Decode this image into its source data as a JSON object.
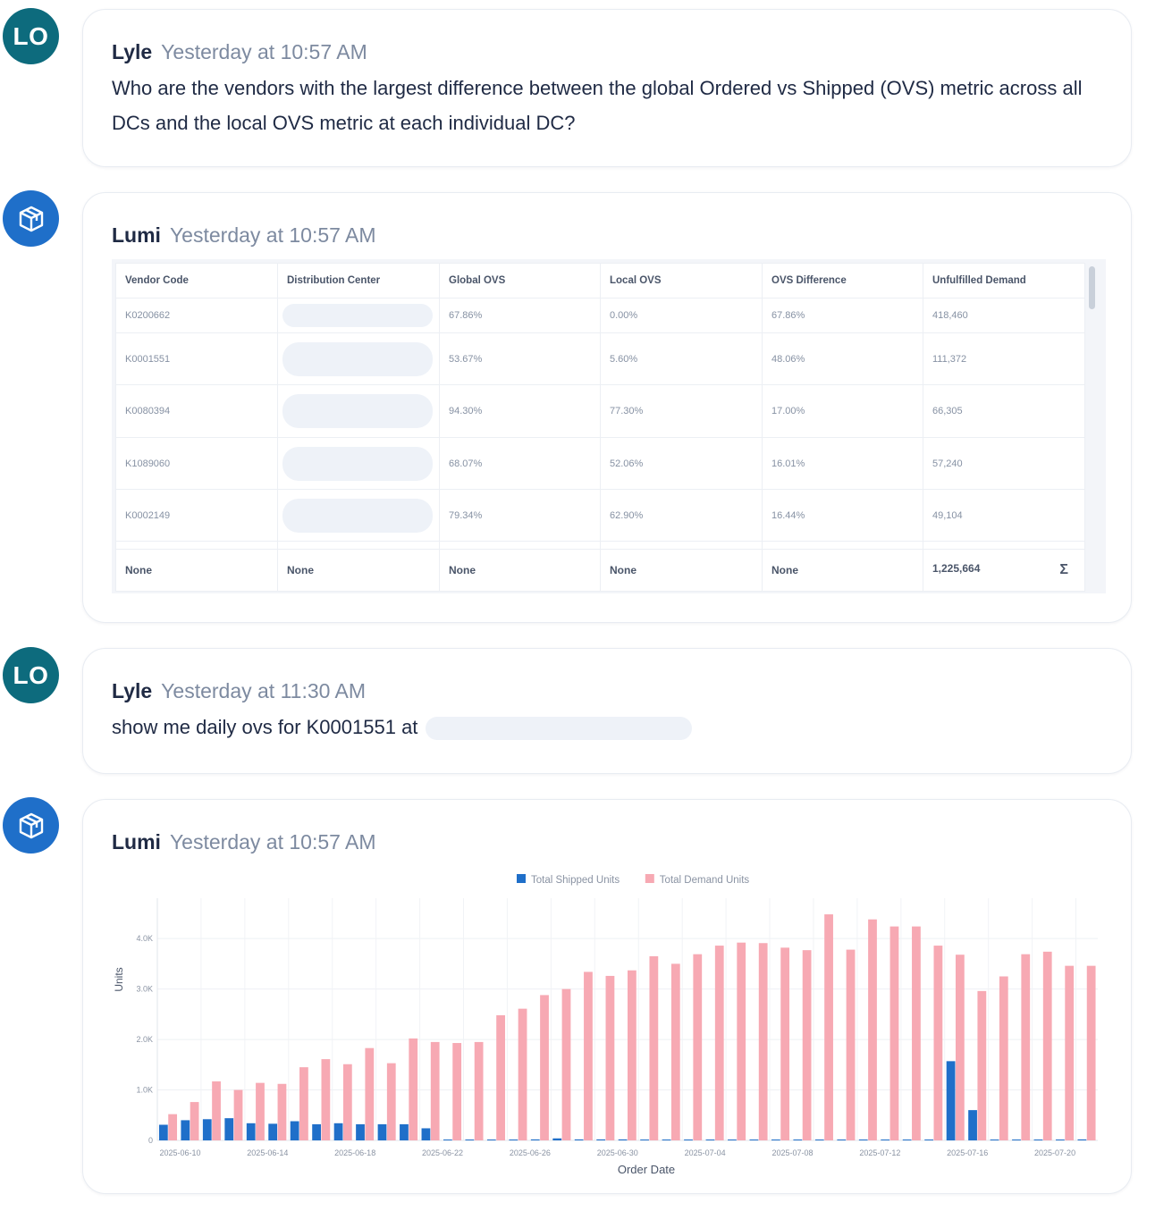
{
  "messages": [
    {
      "avatar": "LO",
      "author": "Lyle",
      "time": "Yesterday  at 10:57 AM",
      "text": "Who are the vendors with the largest difference between the global Ordered vs Shipped (OVS) metric across all DCs and the local OVS metric at each individual DC?"
    },
    {
      "author": "Lumi",
      "time": "Yesterday  at 10:57 AM",
      "avatar_icon": "cube-icon"
    },
    {
      "avatar": "LO",
      "author": "Lyle",
      "time": "Yesterday  at 11:30 AM",
      "text": "show me daily ovs for K0001551 at"
    },
    {
      "author": "Lumi",
      "time": "Yesterday  at 10:57 AM",
      "avatar_icon": "cube-icon"
    }
  ],
  "table": {
    "headers": [
      "Vendor Code",
      "Distribution Center",
      "Global OVS",
      "Local OVS",
      "OVS Difference",
      "Unfulfilled Demand"
    ],
    "rows": [
      {
        "vendor": "K0200662",
        "global": "67.86%",
        "local": "0.00%",
        "diff": "67.86%",
        "unfulfilled": "418,460"
      },
      {
        "vendor": "K0001551",
        "global": "53.67%",
        "local": "5.60%",
        "diff": "48.06%",
        "unfulfilled": "111,372"
      },
      {
        "vendor": "K0080394",
        "global": "94.30%",
        "local": "77.30%",
        "diff": "17.00%",
        "unfulfilled": "66,305"
      },
      {
        "vendor": "K1089060",
        "global": "68.07%",
        "local": "52.06%",
        "diff": "16.01%",
        "unfulfilled": "57,240"
      },
      {
        "vendor": "K0002149",
        "global": "79.34%",
        "local": "62.90%",
        "diff": "16.44%",
        "unfulfilled": "49,104"
      }
    ],
    "footer": [
      "None",
      "None",
      "None",
      "None",
      "None",
      "1,225,664"
    ],
    "footer_icon": "sigma-icon"
  },
  "chart_data": {
    "type": "bar",
    "xlabel": "Order Date",
    "ylabel": "Units",
    "ylim": [
      0,
      4800
    ],
    "y_ticks": [
      0,
      1000,
      2000,
      3000,
      4000
    ],
    "y_tick_labels": [
      "0",
      "1.0K",
      "2.0K",
      "3.0K",
      "4.0K"
    ],
    "x_tick_labels": [
      "2025-06-10",
      "2025-06-14",
      "2025-06-18",
      "2025-06-22",
      "2025-06-26",
      "2025-06-30",
      "2025-07-04",
      "2025-07-08",
      "2025-07-12",
      "2025-07-16",
      "2025-07-20"
    ],
    "x_tick_dates": [
      "2025-06-10",
      "2025-06-14",
      "2025-06-18",
      "2025-06-22",
      "2025-06-26",
      "2025-06-30",
      "2025-07-04",
      "2025-07-08",
      "2025-07-12",
      "2025-07-16",
      "2025-07-20"
    ],
    "legend": "top-center",
    "grid": true,
    "dates": [
      "2025-06-09",
      "2025-06-10",
      "2025-06-11",
      "2025-06-12",
      "2025-06-13",
      "2025-06-14",
      "2025-06-15",
      "2025-06-16",
      "2025-06-17",
      "2025-06-18",
      "2025-06-19",
      "2025-06-20",
      "2025-06-21",
      "2025-06-22",
      "2025-06-23",
      "2025-06-24",
      "2025-06-25",
      "2025-06-26",
      "2025-06-27",
      "2025-06-28",
      "2025-06-29",
      "2025-06-30",
      "2025-07-01",
      "2025-07-02",
      "2025-07-03",
      "2025-07-04",
      "2025-07-05",
      "2025-07-06",
      "2025-07-07",
      "2025-07-08",
      "2025-07-09",
      "2025-07-10",
      "2025-07-11",
      "2025-07-12",
      "2025-07-13",
      "2025-07-14",
      "2025-07-15",
      "2025-07-16",
      "2025-07-17",
      "2025-07-18",
      "2025-07-19",
      "2025-07-20",
      "2025-07-21"
    ],
    "series": [
      {
        "name": "Total Shipped Units",
        "color": "#1f6fc9",
        "values": [
          310,
          400,
          420,
          440,
          340,
          330,
          380,
          320,
          340,
          320,
          320,
          320,
          240,
          10,
          10,
          10,
          10,
          20,
          40,
          20,
          20,
          20,
          10,
          10,
          10,
          10,
          10,
          10,
          10,
          10,
          10,
          10,
          10,
          10,
          10,
          10,
          1570,
          600,
          10,
          10,
          10,
          10,
          20
        ]
      },
      {
        "name": "Total Demand Units",
        "color": "#f7a9b3",
        "values": [
          520,
          760,
          1170,
          1000,
          1140,
          1120,
          1450,
          1610,
          1510,
          1830,
          1530,
          2020,
          1950,
          1930,
          1950,
          2480,
          2610,
          2880,
          3000,
          3340,
          3260,
          3370,
          3650,
          3500,
          3690,
          3860,
          3920,
          3910,
          3820,
          3770,
          4480,
          3780,
          4380,
          4240,
          4240,
          3860,
          3680,
          2960,
          3250,
          3690,
          3740,
          3460,
          3460
        ]
      }
    ]
  }
}
